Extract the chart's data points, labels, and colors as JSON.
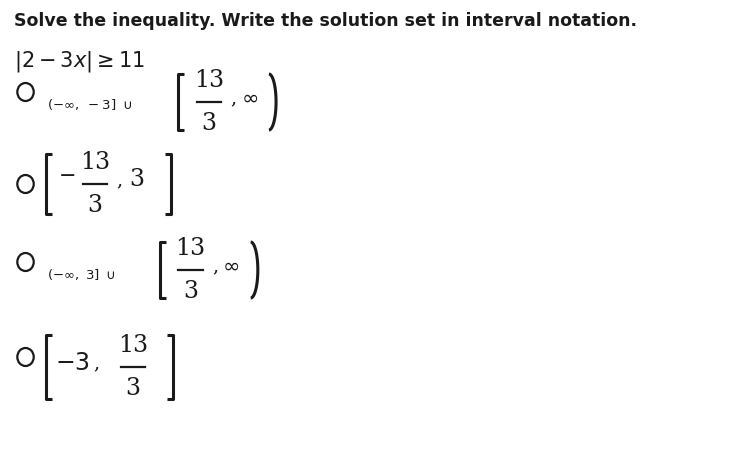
{
  "title": "Solve the inequality. Write the solution set in interval notation.",
  "background_color": "#ffffff",
  "text_color": "#1a1a1a",
  "title_fontsize": 12.5,
  "eq_fontsize": 14
}
